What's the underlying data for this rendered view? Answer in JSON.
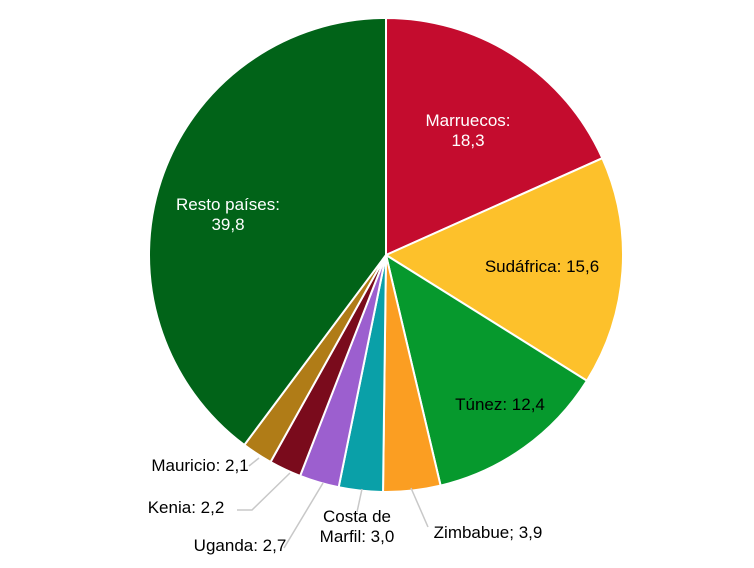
{
  "chart_data": {
    "type": "pie",
    "start_angle_deg": 0,
    "direction": "clockwise",
    "slices": [
      {
        "label": "Marruecos",
        "value": 18.3,
        "display": "18,3",
        "color": "#c40c2e"
      },
      {
        "label": "Sudáfrica",
        "value": 15.6,
        "display": "15,6",
        "color": "#fdc12b"
      },
      {
        "label": "Túnez",
        "value": 12.4,
        "display": "12,4",
        "color": "#06992d"
      },
      {
        "label": "Zimbabue",
        "value": 3.9,
        "display": "3,9",
        "color": "#fb9e22"
      },
      {
        "label": "Costa de Marfil",
        "value": 3.0,
        "display": "3,0",
        "color": "#0aa0a8"
      },
      {
        "label": "Uganda",
        "value": 2.7,
        "display": "2,7",
        "color": "#9c5fcf"
      },
      {
        "label": "Kenia",
        "value": 2.2,
        "display": "2,2",
        "color": "#7a0b1c"
      },
      {
        "label": "Mauricio",
        "value": 2.1,
        "display": "2,1",
        "color": "#b07c17"
      },
      {
        "label": "Resto países",
        "value": 39.8,
        "display": "39,8",
        "color": "#016318"
      }
    ],
    "label_lines": [
      [
        "Marruecos:",
        "18,3"
      ],
      [
        "Sudáfrica: 15,6"
      ],
      [
        "Túnez: 12,4"
      ],
      [
        "Zimbabue; 3,9"
      ],
      [
        "Costa de",
        "Marfil: 3,0"
      ],
      [
        "Uganda: 2,7"
      ],
      [
        "Kenia: 2,2"
      ],
      [
        "Mauricio: 2,1"
      ],
      [
        "Resto países:",
        "39,8"
      ]
    ]
  }
}
